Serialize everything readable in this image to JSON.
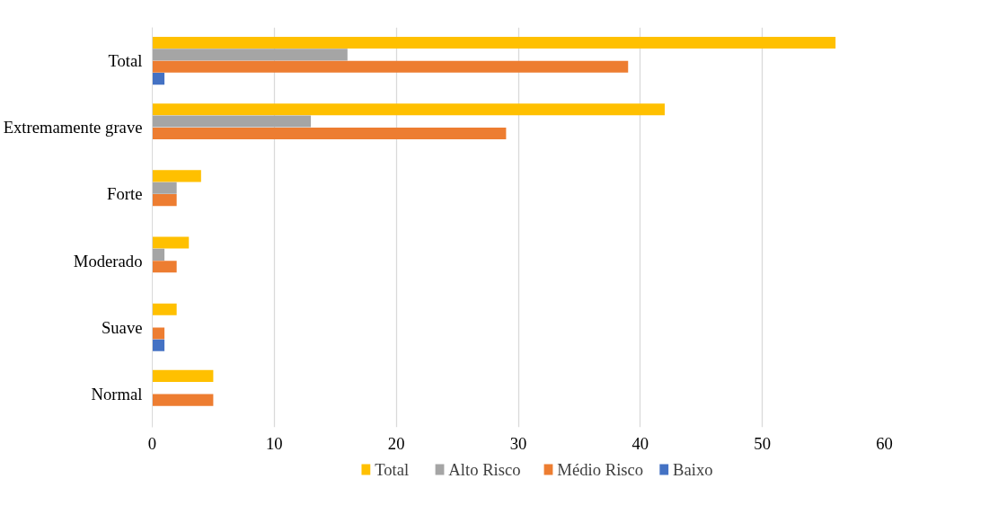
{
  "chart_data": {
    "type": "bar",
    "orientation": "horizontal",
    "categories": [
      "Total",
      "Extremamente grave",
      "Forte",
      "Moderado",
      "Suave",
      "Normal"
    ],
    "series": [
      {
        "name": "Total",
        "color": "#ffc000",
        "values": [
          56,
          42,
          4,
          3,
          2,
          5
        ]
      },
      {
        "name": "Alto Risco",
        "color": "#a5a5a5",
        "values": [
          16,
          13,
          2,
          1,
          0,
          0
        ]
      },
      {
        "name": "Médio Risco",
        "color": "#ed7d31",
        "values": [
          39,
          29,
          2,
          2,
          1,
          5
        ]
      },
      {
        "name": "Baixo",
        "color": "#4472c4",
        "values": [
          1,
          0,
          0,
          0,
          1,
          0
        ]
      }
    ],
    "xlim": [
      0,
      60
    ],
    "xticks": [
      0,
      10,
      20,
      30,
      40,
      50,
      60
    ],
    "grid": "x",
    "legend": "bottom"
  }
}
